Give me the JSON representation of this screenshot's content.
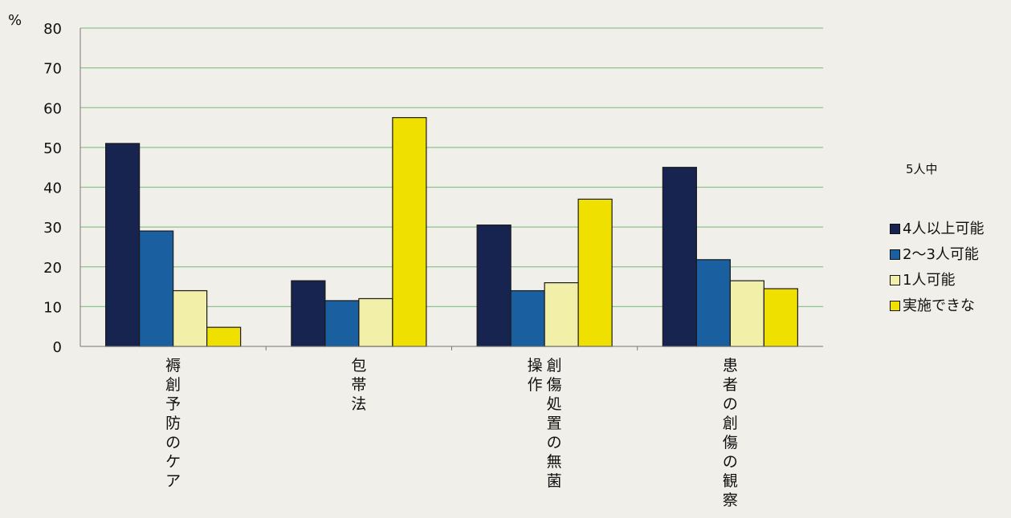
{
  "chart_data": {
    "type": "bar",
    "unit_label": "%",
    "note": "5人中",
    "categories": [
      "褥創予防のケア",
      "包帯法",
      "創傷処置の無菌操作",
      "患者の創傷の観察"
    ],
    "category_columns": [
      [
        "褥創予防のケア"
      ],
      [
        "包帯法"
      ],
      [
        "創傷処置の無菌",
        "操作"
      ],
      [
        "患者の創傷の観察"
      ]
    ],
    "series": [
      {
        "name": "4人以上可能",
        "color": "#17244f",
        "values": [
          51,
          16.5,
          30.5,
          45
        ]
      },
      {
        "name": "2～3人可能",
        "color": "#1a5fa0",
        "values": [
          29,
          11.5,
          14,
          21.8
        ]
      },
      {
        "name": "1人可能",
        "color": "#f2f0a8",
        "values": [
          14,
          12,
          16,
          16.5
        ]
      },
      {
        "name": "実施できな",
        "color": "#f0e000",
        "values": [
          4.8,
          57.5,
          37,
          14.5
        ]
      }
    ],
    "ylim": [
      0,
      80
    ],
    "yticks": [
      "0",
      "10",
      "20",
      "30",
      "40",
      "50",
      "60",
      "70",
      "80"
    ],
    "grid": true,
    "legend_position": "right"
  }
}
